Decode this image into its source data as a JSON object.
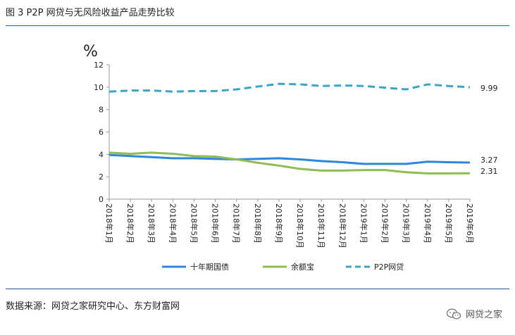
{
  "header": {
    "title": "图 3 P2P 网贷与无风险收益产品走势比较"
  },
  "footer": {
    "source": "数据来源：网贷之家研究中心、东方财富网",
    "watermark": "网贷之家",
    "watermark_icon": "wechat-icon"
  },
  "colors": {
    "rule": "#1f5d9e",
    "series": [
      "#2e86e0",
      "#8fbd52",
      "#3aa6c4"
    ]
  },
  "chart_data": {
    "type": "line",
    "unit": "%",
    "ylim": [
      0,
      12
    ],
    "yticks": [
      0,
      2,
      4,
      6,
      8,
      10,
      12
    ],
    "grid": false,
    "legend_position": "bottom",
    "categories": [
      "2018年1月",
      "2018年2月",
      "2018年3月",
      "2018年4月",
      "2018年5月",
      "2018年6月",
      "2018年7月",
      "2018年8月",
      "2018年9月",
      "2018年10月",
      "2018年11月",
      "2018年12月",
      "2019年1月",
      "2019年2月",
      "2019年3月",
      "2019年4月",
      "2019年5月",
      "2019年6月"
    ],
    "series": [
      {
        "name": "十年期国债",
        "style": "solid",
        "color": "#2e86e0",
        "values": [
          3.95,
          3.85,
          3.75,
          3.65,
          3.65,
          3.6,
          3.55,
          3.6,
          3.65,
          3.55,
          3.4,
          3.3,
          3.15,
          3.15,
          3.15,
          3.35,
          3.3,
          3.27
        ]
      },
      {
        "name": "余额宝",
        "style": "solid",
        "color": "#8fbd52",
        "values": [
          4.15,
          4.05,
          4.15,
          4.05,
          3.85,
          3.8,
          3.55,
          3.25,
          3.0,
          2.7,
          2.55,
          2.55,
          2.6,
          2.6,
          2.4,
          2.3,
          2.3,
          2.31
        ]
      },
      {
        "name": "P2P网贷",
        "style": "dashed",
        "color": "#3aa6c4",
        "values": [
          9.6,
          9.7,
          9.7,
          9.6,
          9.65,
          9.65,
          9.8,
          10.05,
          10.3,
          10.25,
          10.1,
          10.15,
          10.1,
          9.95,
          9.8,
          10.25,
          10.1,
          9.99
        ]
      }
    ],
    "end_labels": [
      "3.27",
      "2.31",
      "9.99"
    ]
  }
}
